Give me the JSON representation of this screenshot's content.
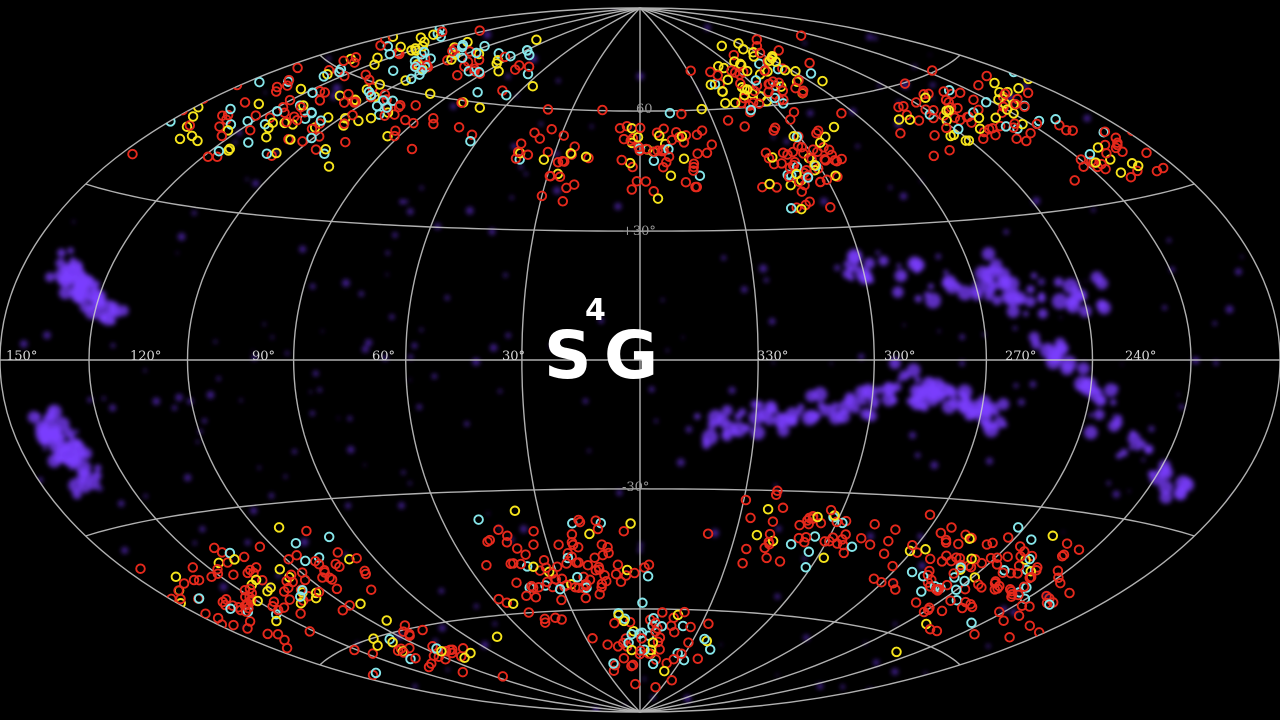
{
  "logo": {
    "main": "S",
    "superscript": "4",
    "suffix": "G"
  },
  "longitude_labels": [
    "150°",
    "120°",
    "90°",
    "60°",
    "30°",
    "330°",
    "300°",
    "270°",
    "240°"
  ],
  "latitude_labels": [
    "60",
    "+30°",
    "-30°"
  ]
}
